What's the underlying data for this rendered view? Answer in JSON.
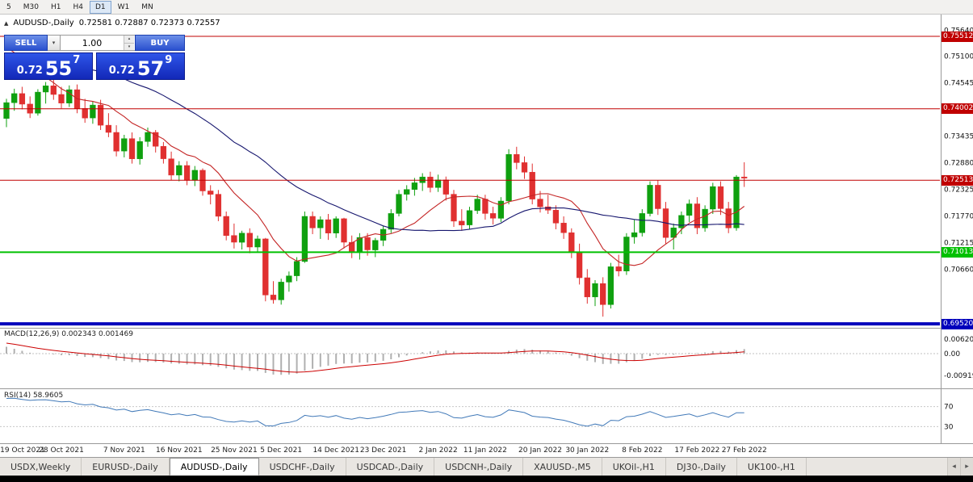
{
  "toolbar": {
    "timeframes": [
      "5",
      "M30",
      "H1",
      "H4",
      "D1",
      "W1",
      "MN"
    ],
    "active_timeframe": "D1"
  },
  "chart_header": {
    "symbol": "AUDUSD-,Daily",
    "ohlc_display": "0.72581 0.72887 0.72373 0.72557"
  },
  "trade_panel": {
    "sell_label": "SELL",
    "buy_label": "BUY",
    "volume": "1.00",
    "sell_price": {
      "prefix": "0.72",
      "big": "55",
      "sup": "7"
    },
    "buy_price": {
      "prefix": "0.72",
      "big": "57",
      "sup": "9"
    }
  },
  "tabs": {
    "items": [
      "USDX,Weekly",
      "EURUSD-,Daily",
      "AUDUSD-,Daily",
      "USDCHF-,Daily",
      "USDCAD-,Daily",
      "USDCNH-,Daily",
      "XAUUSD-,M5",
      "UKOil-,H1",
      "DJ30-,Daily",
      "UK100-,H1"
    ],
    "active_tab": "AUDUSD-,Daily"
  },
  "colors": {
    "up_candle": "#0fa00f",
    "down_candle": "#e03030",
    "resistance_line": "#c00000",
    "support_line": "#00c000",
    "base_line": "#0000bc",
    "trade_button_blue": "#2a50cf"
  },
  "chart_data": {
    "type": "candlestick",
    "symbol": "AUDUSD-,Daily",
    "last_ohlc": {
      "open": 0.72581,
      "high": 0.72887,
      "low": 0.72373,
      "close": 0.72557
    },
    "price_range": {
      "top": 0.7595,
      "bottom": 0.69454
    },
    "price_ticks": [
      0.7564,
      0.751,
      0.74545,
      0.73435,
      0.7288,
      0.72325,
      0.7177,
      0.71215,
      0.7066
    ],
    "levels": [
      {
        "price": 0.75512,
        "label": "0.75512",
        "color": "#c00000",
        "thickness": 1,
        "kind": "resistance"
      },
      {
        "price": 0.74002,
        "label": "0.74002",
        "color": "#c00000",
        "thickness": 1,
        "kind": "resistance"
      },
      {
        "price": 0.72513,
        "label": "0.72513",
        "color": "#c00000",
        "thickness": 1,
        "kind": "resistance"
      },
      {
        "price": 0.71013,
        "label": "0.71013",
        "color": "#00c000",
        "thickness": 2,
        "kind": "support"
      },
      {
        "price": 0.6952,
        "label": "0.69520",
        "color": "#0000bc",
        "thickness": 4,
        "kind": "base"
      }
    ],
    "up_color": "#0fa00f",
    "down_color": "#e03030",
    "moving_averages": [
      {
        "period": 10,
        "color": "#c42525"
      },
      {
        "period": 30,
        "color": "#16166e"
      }
    ],
    "ma_warmup_closes": [
      0.73,
      0.7312,
      0.7324,
      0.7338,
      0.7352,
      0.7366,
      0.738,
      0.7394,
      0.7408,
      0.7422,
      0.7436,
      0.745,
      0.7464,
      0.7477,
      0.7489,
      0.75,
      0.751,
      0.7519,
      0.7527,
      0.7534,
      0.754,
      0.7545,
      0.7548,
      0.755,
      0.755,
      0.7548,
      0.7544,
      0.7538,
      0.753,
      0.752
    ],
    "date_ticks": [
      {
        "i": 0,
        "label": "19 Oct 2021"
      },
      {
        "i": 7,
        "label": "28 Oct 2021"
      },
      {
        "i": 15,
        "label": "7 Nov 2021"
      },
      {
        "i": 22,
        "label": "16 Nov 2021"
      },
      {
        "i": 29,
        "label": "25 Nov 2021"
      },
      {
        "i": 35,
        "label": "5 Dec 2021"
      },
      {
        "i": 42,
        "label": "14 Dec 2021"
      },
      {
        "i": 48,
        "label": "23 Dec 2021"
      },
      {
        "i": 55,
        "label": "2 Jan 2022"
      },
      {
        "i": 61,
        "label": "11 Jan 2022"
      },
      {
        "i": 68,
        "label": "20 Jan 2022"
      },
      {
        "i": 74,
        "label": "30 Jan 2022"
      },
      {
        "i": 81,
        "label": "8 Feb 2022"
      },
      {
        "i": 88,
        "label": "17 Feb 2022"
      },
      {
        "i": 94,
        "label": "27 Feb 2022"
      }
    ],
    "candles": [
      [
        0.738,
        0.7421,
        0.7362,
        0.7413
      ],
      [
        0.7413,
        0.7442,
        0.7396,
        0.7432
      ],
      [
        0.7432,
        0.7446,
        0.7399,
        0.741
      ],
      [
        0.741,
        0.7426,
        0.7381,
        0.7391
      ],
      [
        0.7391,
        0.7441,
        0.7386,
        0.7435
      ],
      [
        0.7435,
        0.7456,
        0.7411,
        0.7448
      ],
      [
        0.7448,
        0.7461,
        0.7419,
        0.743
      ],
      [
        0.743,
        0.7446,
        0.7401,
        0.7412
      ],
      [
        0.7412,
        0.7449,
        0.7404,
        0.744
      ],
      [
        0.744,
        0.7451,
        0.7391,
        0.7401
      ],
      [
        0.7401,
        0.7421,
        0.7371,
        0.7381
      ],
      [
        0.7381,
        0.7416,
        0.7369,
        0.7408
      ],
      [
        0.7408,
        0.7419,
        0.7356,
        0.7366
      ],
      [
        0.7366,
        0.7391,
        0.7341,
        0.7351
      ],
      [
        0.7351,
        0.7366,
        0.7301,
        0.7312
      ],
      [
        0.7312,
        0.7346,
        0.7299,
        0.7338
      ],
      [
        0.7338,
        0.7351,
        0.7286,
        0.7296
      ],
      [
        0.7296,
        0.7341,
        0.7284,
        0.7332
      ],
      [
        0.7332,
        0.7361,
        0.7321,
        0.7351
      ],
      [
        0.7351,
        0.7356,
        0.7309,
        0.7322
      ],
      [
        0.7322,
        0.7331,
        0.7286,
        0.7296
      ],
      [
        0.7296,
        0.7311,
        0.7251,
        0.7262
      ],
      [
        0.7262,
        0.7291,
        0.7249,
        0.7282
      ],
      [
        0.7282,
        0.7291,
        0.7241,
        0.7251
      ],
      [
        0.7251,
        0.7281,
        0.7239,
        0.7272
      ],
      [
        0.7272,
        0.7276,
        0.7219,
        0.7229
      ],
      [
        0.7229,
        0.7241,
        0.7201,
        0.7222
      ],
      [
        0.7222,
        0.7231,
        0.7166,
        0.7176
      ],
      [
        0.7176,
        0.7186,
        0.7126,
        0.7136
      ],
      [
        0.7136,
        0.7161,
        0.7109,
        0.7122
      ],
      [
        0.7122,
        0.7146,
        0.7107,
        0.7141
      ],
      [
        0.7141,
        0.7151,
        0.7099,
        0.7112
      ],
      [
        0.7112,
        0.7136,
        0.7101,
        0.7129
      ],
      [
        0.7129,
        0.7131,
        0.6999,
        0.7012
      ],
      [
        0.7012,
        0.7041,
        0.6994,
        0.7002
      ],
      [
        0.7002,
        0.7046,
        0.6992,
        0.7039
      ],
      [
        0.7039,
        0.7061,
        0.7019,
        0.7052
      ],
      [
        0.7052,
        0.7091,
        0.7041,
        0.7082
      ],
      [
        0.7082,
        0.7186,
        0.7079,
        0.7176
      ],
      [
        0.7176,
        0.7186,
        0.7139,
        0.7152
      ],
      [
        0.7152,
        0.7176,
        0.7129,
        0.7169
      ],
      [
        0.7169,
        0.7181,
        0.7127,
        0.7141
      ],
      [
        0.7141,
        0.7176,
        0.7131,
        0.7171
      ],
      [
        0.7171,
        0.7173,
        0.7109,
        0.7122
      ],
      [
        0.7122,
        0.7136,
        0.7089,
        0.7101
      ],
      [
        0.7101,
        0.7141,
        0.7086,
        0.7132
      ],
      [
        0.7132,
        0.7141,
        0.7094,
        0.7106
      ],
      [
        0.7106,
        0.7131,
        0.7091,
        0.7126
      ],
      [
        0.7126,
        0.7156,
        0.7114,
        0.7149
      ],
      [
        0.7149,
        0.7191,
        0.7141,
        0.7182
      ],
      [
        0.7182,
        0.7231,
        0.7176,
        0.7222
      ],
      [
        0.7222,
        0.7241,
        0.7209,
        0.7232
      ],
      [
        0.7232,
        0.7256,
        0.7219,
        0.7246
      ],
      [
        0.7246,
        0.7266,
        0.7229,
        0.7258
      ],
      [
        0.7258,
        0.7269,
        0.7226,
        0.7236
      ],
      [
        0.7236,
        0.7263,
        0.7227,
        0.7252
      ],
      [
        0.7252,
        0.7259,
        0.7209,
        0.7222
      ],
      [
        0.7222,
        0.7231,
        0.7154,
        0.7166
      ],
      [
        0.7166,
        0.7191,
        0.7146,
        0.7158
      ],
      [
        0.7158,
        0.7196,
        0.7149,
        0.7188
      ],
      [
        0.7188,
        0.7221,
        0.7181,
        0.7212
      ],
      [
        0.7212,
        0.7221,
        0.7169,
        0.7182
      ],
      [
        0.7182,
        0.7196,
        0.7159,
        0.7172
      ],
      [
        0.7172,
        0.7216,
        0.7164,
        0.7208
      ],
      [
        0.7208,
        0.7316,
        0.7201,
        0.7305
      ],
      [
        0.7305,
        0.7321,
        0.7274,
        0.7288
      ],
      [
        0.7288,
        0.7301,
        0.7254,
        0.7268
      ],
      [
        0.7268,
        0.7286,
        0.7201,
        0.7212
      ],
      [
        0.7212,
        0.7229,
        0.7184,
        0.7196
      ],
      [
        0.7196,
        0.7221,
        0.7181,
        0.7189
      ],
      [
        0.7189,
        0.7199,
        0.7149,
        0.7162
      ],
      [
        0.7162,
        0.7176,
        0.7129,
        0.7142
      ],
      [
        0.7142,
        0.7151,
        0.7089,
        0.7102
      ],
      [
        0.7102,
        0.7119,
        0.7034,
        0.7048
      ],
      [
        0.7048,
        0.7066,
        0.6994,
        0.7008
      ],
      [
        0.7008,
        0.7043,
        0.6989,
        0.7036
      ],
      [
        0.7036,
        0.7049,
        0.6967,
        0.6992
      ],
      [
        0.6992,
        0.7079,
        0.6984,
        0.7071
      ],
      [
        0.7071,
        0.7096,
        0.7051,
        0.7062
      ],
      [
        0.7062,
        0.7141,
        0.7054,
        0.7133
      ],
      [
        0.7133,
        0.7169,
        0.7119,
        0.7142
      ],
      [
        0.7142,
        0.7191,
        0.7134,
        0.7182
      ],
      [
        0.7182,
        0.7249,
        0.7176,
        0.7241
      ],
      [
        0.7241,
        0.7251,
        0.7179,
        0.7192
      ],
      [
        0.7192,
        0.7206,
        0.7119,
        0.7132
      ],
      [
        0.7132,
        0.7161,
        0.7107,
        0.7152
      ],
      [
        0.7152,
        0.7186,
        0.7139,
        0.7178
      ],
      [
        0.7178,
        0.7211,
        0.7164,
        0.7202
      ],
      [
        0.7202,
        0.7216,
        0.7139,
        0.7152
      ],
      [
        0.7152,
        0.7199,
        0.7144,
        0.7191
      ],
      [
        0.7191,
        0.7246,
        0.7181,
        0.7238
      ],
      [
        0.7238,
        0.7249,
        0.7179,
        0.7192
      ],
      [
        0.7192,
        0.7206,
        0.7141,
        0.7152
      ],
      [
        0.7152,
        0.7262,
        0.7146,
        0.7258
      ],
      [
        0.72581,
        0.72887,
        0.72373,
        0.72557
      ]
    ],
    "macd": {
      "title_display": "MACD(12,26,9) 0.002343 0.001469",
      "fast": 12,
      "slow": 26,
      "signal": 9,
      "macd_value": 0.002343,
      "signal_value": 0.001469,
      "axis_ticks": [
        "0.006201",
        "0.00",
        "-0.00919"
      ],
      "histogram_color": "#b0b0b0",
      "signal_color": "#cc0000",
      "range": {
        "max": 0.00987,
        "min": -0.01328
      }
    },
    "rsi": {
      "title_display": "RSI(14) 58.9605",
      "period": 14,
      "current_value": 58.9605,
      "levels": [
        70,
        30
      ],
      "color": "#4179b8",
      "range": [
        0,
        100
      ]
    }
  }
}
